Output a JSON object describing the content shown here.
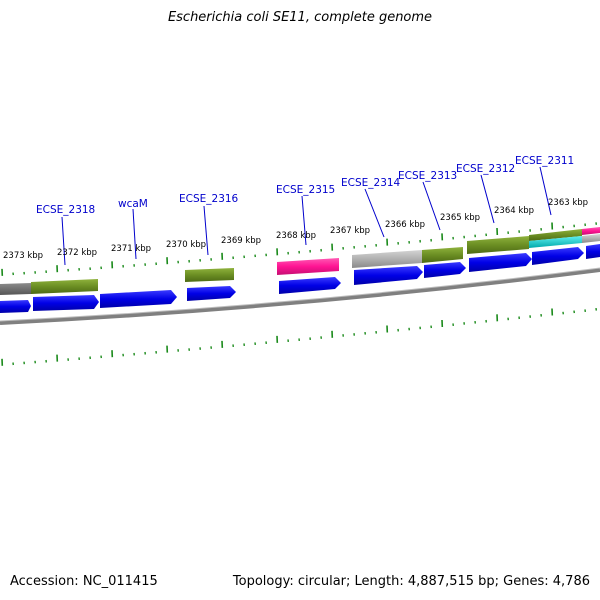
{
  "title": "Escherichia coli SE11, complete genome",
  "footer": {
    "accession": "Accession: NC_011415",
    "summary": "Topology: circular; Length: 4,887,515 bp; Genes: 4,786"
  },
  "kbp_labels": [
    "2373 kbp",
    "2372 kbp",
    "2371 kbp",
    "2370 kbp",
    "2369 kbp",
    "2368 kbp",
    "2367 kbp",
    "2366 kbp",
    "2365 kbp",
    "2364 kbp",
    "2363 kbp"
  ],
  "gene_labels": [
    "ECSE_2318",
    "wcaM",
    "ECSE_2316",
    "ECSE_2315",
    "ECSE_2314",
    "ECSE_2313",
    "ECSE_2312",
    "ECSE_2311"
  ],
  "colors": {
    "cds": "#0000e6",
    "olive": "#6b8e23",
    "gray": "#b0b0b0",
    "pink": "#ff1493",
    "cyan": "#00ced1",
    "backbone": "#808080",
    "tick": "#1a8a1a",
    "label": "#0000cc"
  }
}
